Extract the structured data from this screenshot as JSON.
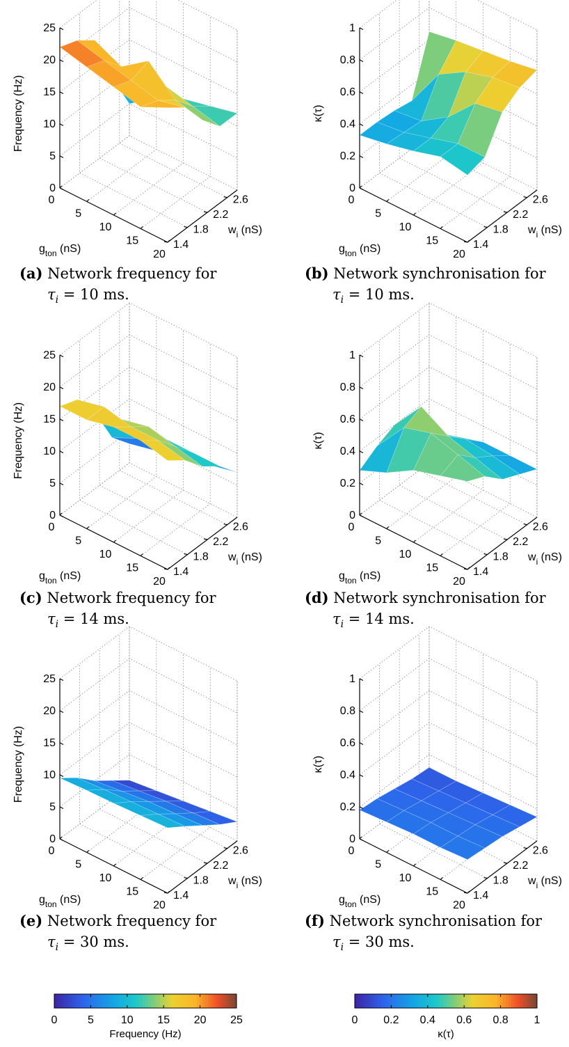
{
  "chart_data": [
    {
      "type": "surface",
      "id": "a",
      "zlabel": "Frequency (Hz)",
      "xlabel_main": "g",
      "xlabel_sub": "ton",
      "xlabel_unit": " (nS)",
      "ylabel_main": "w",
      "ylabel_sub": "i",
      "ylabel_unit": " (nS)",
      "x_ticks": [
        "0",
        "5",
        "10",
        "15",
        "20"
      ],
      "y_ticks": [
        "1.4",
        "1.8",
        "2.2",
        "2.6"
      ],
      "z_ticks": [
        "0",
        "5",
        "10",
        "15",
        "20",
        "25"
      ],
      "xlim": [
        0,
        20
      ],
      "ylim": [
        1.4,
        2.8
      ],
      "zlim": [
        0,
        25
      ],
      "colormap": "jet",
      "clim": [
        0,
        25
      ],
      "x": [
        0,
        5,
        10,
        15,
        20
      ],
      "y": [
        1.4,
        1.75,
        2.1,
        2.45,
        2.8
      ],
      "z": [
        [
          22,
          21,
          20,
          19,
          21
        ],
        [
          21,
          20,
          19,
          18,
          19
        ],
        [
          19,
          17,
          20,
          16,
          15
        ],
        [
          11,
          13,
          14,
          13,
          12
        ],
        [
          5,
          8,
          10,
          11,
          12
        ]
      ],
      "caption_label": "(a)",
      "caption_text": "Network frequency for",
      "caption_math": "τ",
      "caption_sub": "i",
      "caption_rest": " = 10 ms."
    },
    {
      "type": "surface",
      "id": "b",
      "zlabel": "κ(τ)",
      "xlabel_main": "g",
      "xlabel_sub": "ton",
      "xlabel_unit": " (nS)",
      "ylabel_main": "w",
      "ylabel_sub": "i",
      "ylabel_unit": " (nS)",
      "x_ticks": [
        "0",
        "5",
        "10",
        "15",
        "20"
      ],
      "y_ticks": [
        "1.4",
        "1.8",
        "2.2",
        "2.6"
      ],
      "z_ticks": [
        "0",
        "0.2",
        "0.4",
        "0.6",
        "0.8",
        "1"
      ],
      "xlim": [
        0,
        20
      ],
      "ylim": [
        1.4,
        2.8
      ],
      "zlim": [
        0,
        1
      ],
      "colormap": "jet",
      "clim": [
        0,
        1
      ],
      "x": [
        0,
        5,
        10,
        15,
        20
      ],
      "y": [
        1.4,
        1.75,
        2.1,
        2.45,
        2.8
      ],
      "z": [
        [
          0.33,
          0.36,
          0.4,
          0.45,
          0.42
        ],
        [
          0.33,
          0.35,
          0.4,
          0.45,
          0.45
        ],
        [
          0.32,
          0.34,
          0.45,
          0.62,
          0.65
        ],
        [
          0.3,
          0.55,
          0.65,
          0.7,
          0.72
        ],
        [
          0.65,
          0.68,
          0.7,
          0.72,
          0.75
        ]
      ],
      "caption_label": "(b)",
      "caption_text": "Network synchronisation for",
      "caption_math": "τ",
      "caption_sub": "i",
      "caption_rest": " = 10 ms."
    },
    {
      "type": "surface",
      "id": "c",
      "zlabel": "Frequency (Hz)",
      "xlabel_main": "g",
      "xlabel_sub": "ton",
      "xlabel_unit": " (nS)",
      "ylabel_main": "w",
      "ylabel_sub": "i",
      "ylabel_unit": " (nS)",
      "x_ticks": [
        "0",
        "5",
        "10",
        "15",
        "20"
      ],
      "y_ticks": [
        "1.4",
        "1.8",
        "2.2",
        "2.6"
      ],
      "z_ticks": [
        "0",
        "5",
        "10",
        "15",
        "20",
        "25"
      ],
      "xlim": [
        0,
        20
      ],
      "ylim": [
        1.4,
        2.8
      ],
      "zlim": [
        0,
        25
      ],
      "colormap": "jet",
      "clim": [
        0,
        25
      ],
      "x": [
        0,
        5,
        10,
        15,
        20
      ],
      "y": [
        1.4,
        1.75,
        2.1,
        2.45,
        2.8
      ],
      "z": [
        [
          17,
          17,
          18,
          18,
          17
        ],
        [
          16,
          17,
          16,
          16,
          15
        ],
        [
          12,
          13,
          14,
          13,
          12
        ],
        [
          6,
          8,
          10,
          10,
          10
        ],
        [
          3,
          4,
          5,
          6,
          7
        ]
      ],
      "caption_label": "(c)",
      "caption_text": "Network frequency for",
      "caption_math": "τ",
      "caption_sub": "i",
      "caption_rest": " = 14 ms."
    },
    {
      "type": "surface",
      "id": "d",
      "zlabel": "κ(τ)",
      "xlabel_main": "g",
      "xlabel_sub": "ton",
      "xlabel_unit": " (nS)",
      "ylabel_main": "w",
      "ylabel_sub": "i",
      "ylabel_unit": " (nS)",
      "x_ticks": [
        "0",
        "5",
        "10",
        "15",
        "20"
      ],
      "y_ticks": [
        "1.4",
        "1.8",
        "2.2",
        "2.6"
      ],
      "z_ticks": [
        "0",
        "0.2",
        "0.4",
        "0.6",
        "0.8",
        "1"
      ],
      "xlim": [
        0,
        20
      ],
      "ylim": [
        1.4,
        2.8
      ],
      "zlim": [
        0,
        1
      ],
      "colormap": "jet",
      "clim": [
        0,
        1
      ],
      "x": [
        0,
        5,
        10,
        15,
        20
      ],
      "y": [
        1.4,
        1.75,
        2.1,
        2.45,
        2.8
      ],
      "z": [
        [
          0.28,
          0.35,
          0.45,
          0.5,
          0.55
        ],
        [
          0.35,
          0.55,
          0.6,
          0.55,
          0.5
        ],
        [
          0.4,
          0.6,
          0.5,
          0.45,
          0.4
        ],
        [
          0.3,
          0.35,
          0.4,
          0.38,
          0.35
        ],
        [
          0.2,
          0.25,
          0.3,
          0.3,
          0.3
        ]
      ],
      "caption_label": "(d)",
      "caption_text": "Network synchronisation for",
      "caption_math": "τ",
      "caption_sub": "i",
      "caption_rest": " = 14 ms."
    },
    {
      "type": "surface",
      "id": "e",
      "zlabel": "Frequency (Hz)",
      "xlabel_main": "g",
      "xlabel_sub": "ton",
      "xlabel_unit": " (nS)",
      "ylabel_main": "w",
      "ylabel_sub": "i",
      "ylabel_unit": " (nS)",
      "x_ticks": [
        "0",
        "5",
        "10",
        "15",
        "20"
      ],
      "y_ticks": [
        "1.4",
        "1.8",
        "2.2",
        "2.6"
      ],
      "z_ticks": [
        "0",
        "5",
        "10",
        "15",
        "20",
        "25"
      ],
      "xlim": [
        0,
        20
      ],
      "ylim": [
        1.4,
        2.8
      ],
      "zlim": [
        0,
        25
      ],
      "colormap": "jet",
      "clim": [
        0,
        25
      ],
      "x": [
        0,
        5,
        10,
        15,
        20
      ],
      "y": [
        1.4,
        1.75,
        2.1,
        2.45,
        2.8
      ],
      "z": [
        [
          9.5,
          9.7,
          9.8,
          10,
          10.2
        ],
        [
          7.5,
          7.8,
          8,
          8.2,
          8.4
        ],
        [
          5,
          5.5,
          6,
          6.2,
          6.5
        ],
        [
          3,
          3.5,
          4,
          4.3,
          4.6
        ],
        [
          1,
          1.5,
          2,
          2.5,
          3
        ]
      ],
      "caption_label": "(e)",
      "caption_text": "Network frequency for",
      "caption_math": "τ",
      "caption_sub": "i",
      "caption_rest": " = 30 ms."
    },
    {
      "type": "surface",
      "id": "f",
      "zlabel": "κ(τ)",
      "xlabel_main": "g",
      "xlabel_sub": "ton",
      "xlabel_unit": " (nS)",
      "ylabel_main": "w",
      "ylabel_sub": "i",
      "ylabel_unit": " (nS)",
      "x_ticks": [
        "0",
        "5",
        "10",
        "15",
        "20"
      ],
      "y_ticks": [
        "1.4",
        "1.8",
        "2.2",
        "2.6"
      ],
      "z_ticks": [
        "0",
        "0.2",
        "0.4",
        "0.6",
        "0.8",
        "1"
      ],
      "xlim": [
        0,
        20
      ],
      "ylim": [
        1.4,
        2.8
      ],
      "zlim": [
        0,
        1
      ],
      "colormap": "jet",
      "clim": [
        0,
        1
      ],
      "x": [
        0,
        5,
        10,
        15,
        20
      ],
      "y": [
        1.4,
        1.75,
        2.1,
        2.45,
        2.8
      ],
      "z": [
        [
          0.18,
          0.19,
          0.2,
          0.2,
          0.21
        ],
        [
          0.17,
          0.18,
          0.19,
          0.19,
          0.2
        ],
        [
          0.15,
          0.16,
          0.17,
          0.18,
          0.19
        ],
        [
          0.13,
          0.14,
          0.15,
          0.16,
          0.17
        ],
        [
          0.12,
          0.12,
          0.13,
          0.14,
          0.15
        ]
      ],
      "caption_label": "(f)",
      "caption_text": "Network synchronisation for",
      "caption_math": "τ",
      "caption_sub": "i",
      "caption_rest": " = 30 ms."
    },
    {
      "type": "colorbar",
      "id": "cb1",
      "colormap": "jet",
      "clim": [
        0,
        25
      ],
      "ticks": [
        "0",
        "5",
        "10",
        "15",
        "20",
        "25"
      ],
      "label": "Frequency (Hz)"
    },
    {
      "type": "colorbar",
      "id": "cb2",
      "colormap": "jet",
      "clim": [
        0,
        1
      ],
      "ticks": [
        "0",
        "0.2",
        "0.4",
        "0.6",
        "0.8",
        "1"
      ],
      "label": "κ(τ)"
    }
  ]
}
